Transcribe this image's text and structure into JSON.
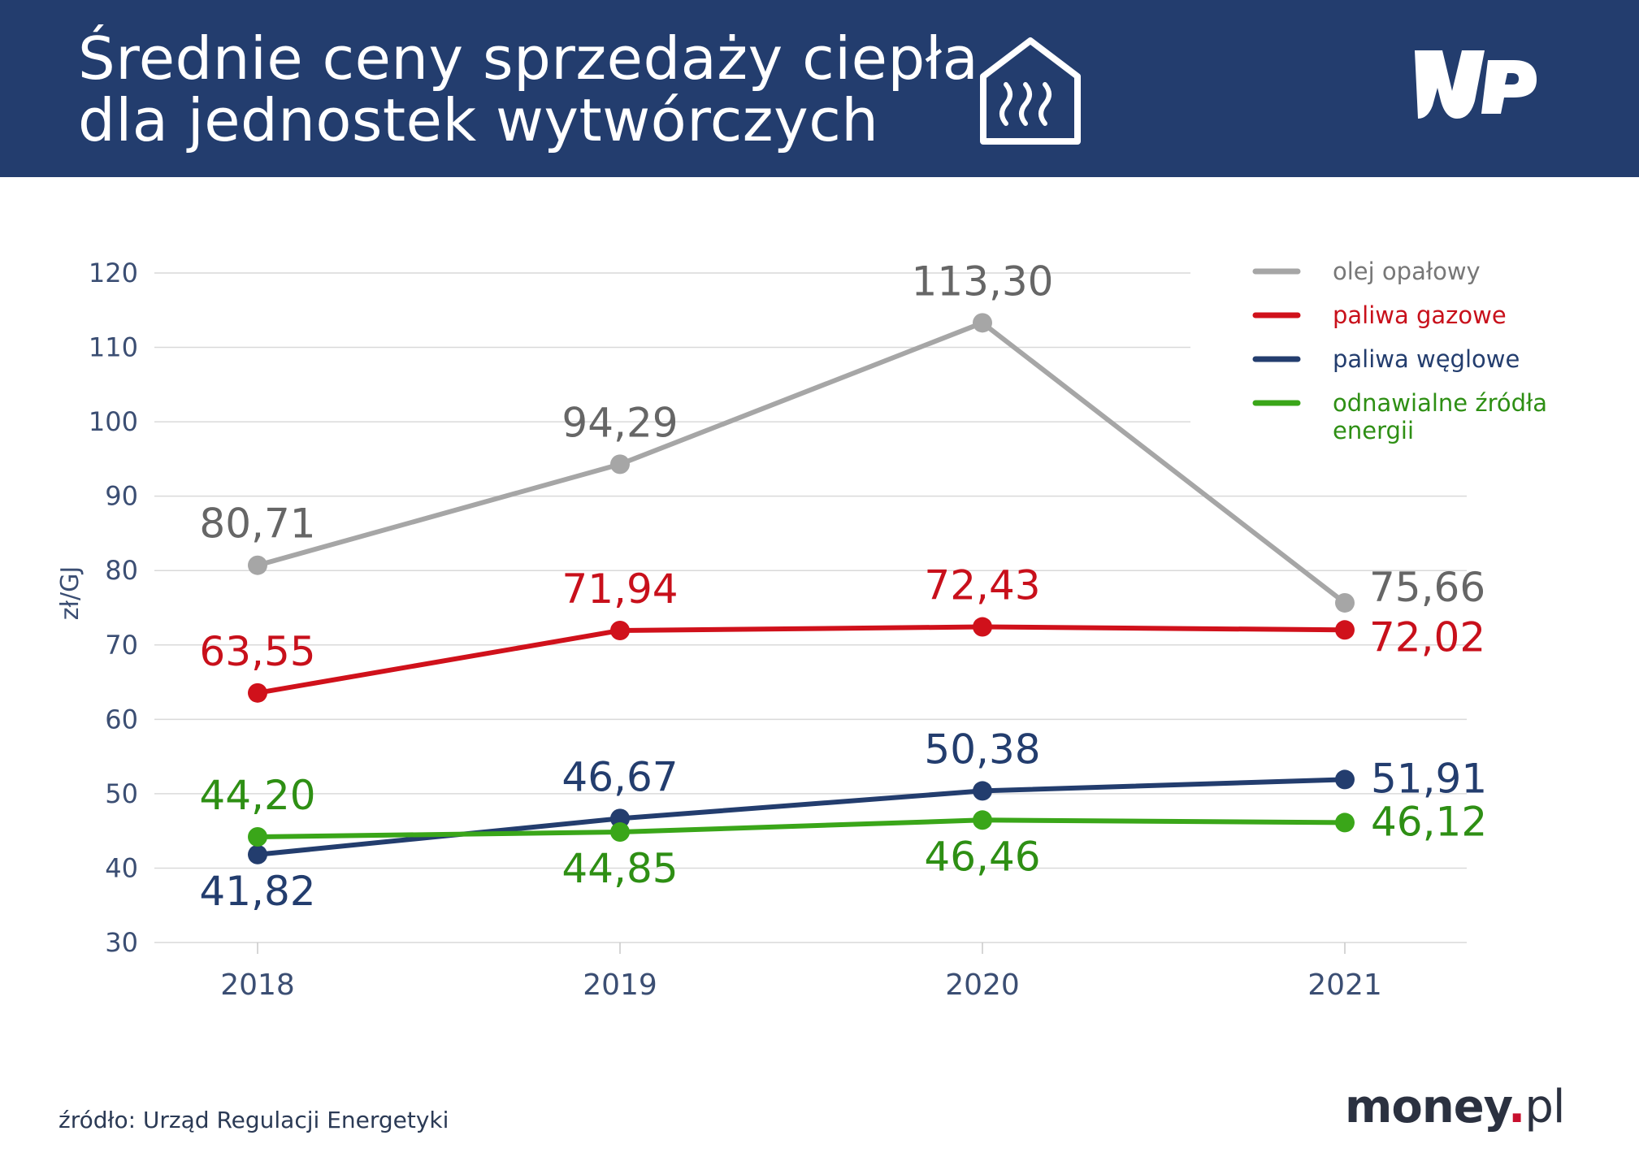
{
  "header": {
    "title_line1": "Średnie ceny sprzedaży ciepła",
    "title_line2": "dla jednostek wytwórczych",
    "icon": "house-heating-icon",
    "logo": "WP"
  },
  "footer": {
    "source": "źródło: Urząd Regulacji Energetyki",
    "brand_main": "money",
    "brand_dot": ".",
    "brand_suffix": "pl"
  },
  "colors": {
    "header_bg": "#233d6e",
    "grid": "#d9d9d9",
    "axis_text": "#3b4e73"
  },
  "chart_data": {
    "type": "line",
    "title": "Średnie ceny sprzedaży ciepła dla jednostek wytwórczych",
    "xlabel": "",
    "ylabel": "zł/GJ",
    "ylim": [
      30,
      120
    ],
    "yticks": [
      30,
      40,
      50,
      60,
      70,
      80,
      90,
      100,
      110,
      120
    ],
    "categories": [
      "2018",
      "2019",
      "2020",
      "2021"
    ],
    "legend_position": "top-right",
    "series": [
      {
        "name": "olej opałowy",
        "color": "#a6a6a6",
        "label_color": "#666666",
        "values": [
          80.71,
          94.29,
          113.3,
          75.66
        ],
        "labels": [
          "80,71",
          "94,29",
          "113,30",
          "75,66"
        ],
        "label_pos": [
          "above",
          "above",
          "above",
          "right-above"
        ]
      },
      {
        "name": "paliwa gazowe",
        "color": "#d0111b",
        "label_color": "#c8101b",
        "values": [
          63.55,
          71.94,
          72.43,
          72.02
        ],
        "labels": [
          "63,55",
          "71,94",
          "72,43",
          "72,02"
        ],
        "label_pos": [
          "above",
          "above",
          "above",
          "right-below"
        ]
      },
      {
        "name": "paliwa węglowe",
        "color": "#233d6e",
        "label_color": "#233d6e",
        "values": [
          41.82,
          46.67,
          50.38,
          51.91
        ],
        "labels": [
          "41,82",
          "46,67",
          "50,38",
          "51,91"
        ],
        "label_pos": [
          "below",
          "above",
          "above",
          "right"
        ]
      },
      {
        "name": "odnawialne źródła energii",
        "color": "#3aa619",
        "label_color": "#2e8f14",
        "values": [
          44.2,
          44.85,
          46.46,
          46.12
        ],
        "labels": [
          "44,20",
          "44,85",
          "46,46",
          "46,12"
        ],
        "label_pos": [
          "above",
          "below",
          "below",
          "right"
        ]
      }
    ],
    "legend": [
      {
        "lines": [
          "olej opałowy"
        ],
        "color": "#a6a6a6",
        "text_color": "#777777"
      },
      {
        "lines": [
          "paliwa gazowe"
        ],
        "color": "#d0111b",
        "text_color": "#c8101b"
      },
      {
        "lines": [
          "paliwa węglowe"
        ],
        "color": "#233d6e",
        "text_color": "#233d6e"
      },
      {
        "lines": [
          "odnawialne źródła",
          "energii"
        ],
        "color": "#3aa619",
        "text_color": "#2e8f14"
      }
    ]
  }
}
